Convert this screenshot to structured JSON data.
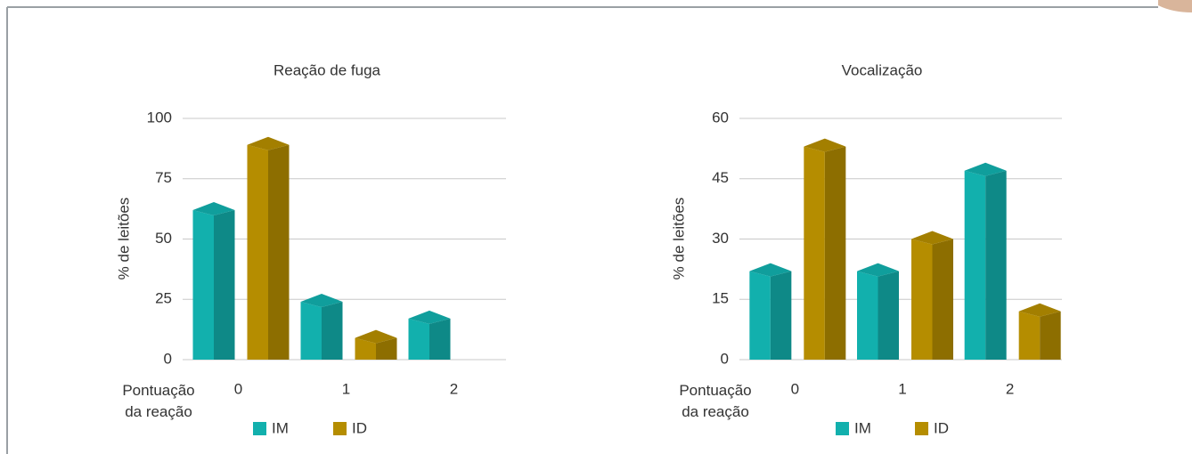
{
  "chart_data": [
    {
      "type": "bar3d",
      "title": "Reação de fuga",
      "ylabel": "% de leitões",
      "xlabel": "Pontuação da reação",
      "categories": [
        "0",
        "1",
        "2"
      ],
      "series": [
        {
          "name": "IM",
          "color": "#12b0ad",
          "values": [
            62,
            24,
            17
          ]
        },
        {
          "name": "ID",
          "color": "#b58d00",
          "values": [
            89,
            9,
            null
          ]
        }
      ],
      "ylim": [
        0,
        100
      ],
      "yticks": [
        0,
        25,
        50,
        75,
        100
      ],
      "grid": true
    },
    {
      "type": "bar3d",
      "title": "Vocalização",
      "ylabel": "% de leitões",
      "xlabel": "Pontuação da reação",
      "categories": [
        "0",
        "1",
        "2"
      ],
      "series": [
        {
          "name": "IM",
          "color": "#12b0ad",
          "values": [
            22,
            22,
            47
          ]
        },
        {
          "name": "ID",
          "color": "#b58d00",
          "values": [
            53,
            30,
            12
          ]
        }
      ],
      "ylim": [
        0,
        60
      ],
      "yticks": [
        0,
        15,
        30,
        45,
        60
      ],
      "grid": true
    }
  ]
}
